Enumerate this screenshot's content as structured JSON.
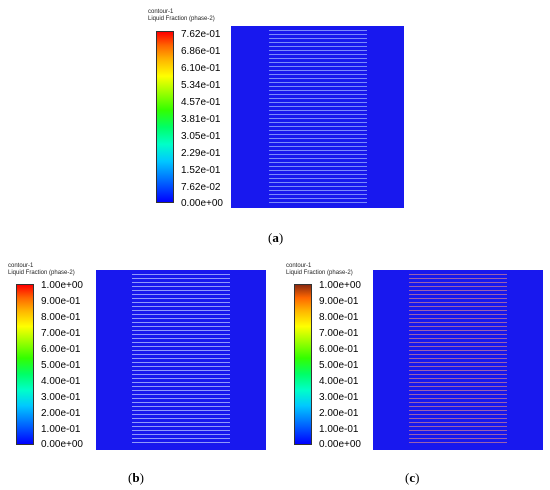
{
  "panels": [
    {
      "id": "a",
      "legend_title_line1": "contour-1",
      "legend_title_line2": "Liquid Fraction (phase-2)",
      "ticks": [
        "7.62e-01",
        "6.86e-01",
        "6.10e-01",
        "5.34e-01",
        "4.57e-01",
        "3.81e-01",
        "3.05e-01",
        "2.29e-01",
        "1.52e-01",
        "7.62e-02",
        "0.00e+00"
      ],
      "caption_letter": "a",
      "stripe_color": "#9bb0ff"
    },
    {
      "id": "b",
      "legend_title_line1": "contour-1",
      "legend_title_line2": "Liquid Fraction (phase-2)",
      "ticks": [
        "1.00e+00",
        "9.00e-01",
        "8.00e-01",
        "7.00e-01",
        "6.00e-01",
        "5.00e-01",
        "4.00e-01",
        "3.00e-01",
        "2.00e-01",
        "1.00e-01",
        "0.00e+00"
      ],
      "caption_letter": "b",
      "stripe_color": "#b6c4ff"
    },
    {
      "id": "c",
      "legend_title_line1": "contour-1",
      "legend_title_line2": "Liquid Fraction (phase-2)",
      "ticks": [
        "1.00e+00",
        "9.00e-01",
        "8.00e-01",
        "7.00e-01",
        "6.00e-01",
        "5.00e-01",
        "4.00e-01",
        "3.00e-01",
        "2.00e-01",
        "1.00e-01",
        "0.00e+00"
      ],
      "caption_letter": "c",
      "stripe_color": "#c47a9a"
    }
  ]
}
